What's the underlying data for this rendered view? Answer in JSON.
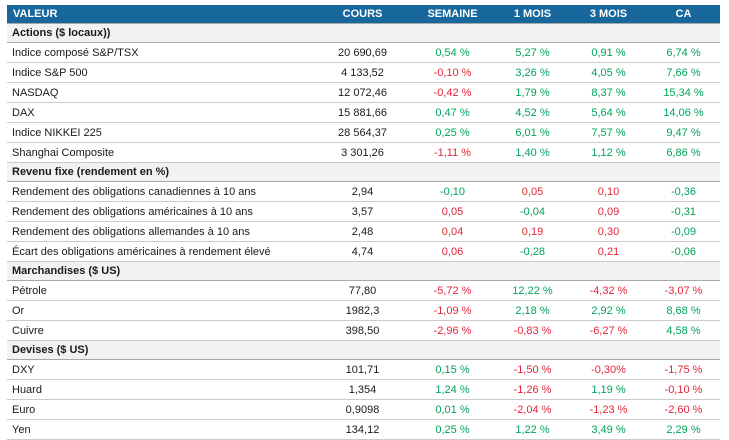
{
  "colors": {
    "header_bg": "#17679D",
    "header_text": "#FFFFFF",
    "positive": "#00A35A",
    "negative": "#E32638",
    "section_bg": "#F2F2F2"
  },
  "chart_data": {
    "type": "table",
    "columns": [
      "VALEUR",
      "COURS",
      "SEMAINE",
      "1 MOIS",
      "3 MOIS",
      "CA"
    ],
    "sections": [
      {
        "title": "Actions ($ locaux))",
        "rows": [
          {
            "label": "Indice composé S&P/TSX",
            "cells": [
              {
                "text": "20 690,69",
                "tone": "plain"
              },
              {
                "text": "0,54 %",
                "tone": "pos"
              },
              {
                "text": "5,27 %",
                "tone": "pos"
              },
              {
                "text": "0,91 %",
                "tone": "pos"
              },
              {
                "text": "6,74 %",
                "tone": "pos"
              }
            ]
          },
          {
            "label": "Indice S&P 500",
            "cells": [
              {
                "text": "4 133,52",
                "tone": "plain"
              },
              {
                "text": "-0,10 %",
                "tone": "neg"
              },
              {
                "text": "3,26 %",
                "tone": "pos"
              },
              {
                "text": "4,05 %",
                "tone": "pos"
              },
              {
                "text": "7,66 %",
                "tone": "pos"
              }
            ]
          },
          {
            "label": "NASDAQ",
            "cells": [
              {
                "text": "12 072,46",
                "tone": "plain"
              },
              {
                "text": "-0,42 %",
                "tone": "neg"
              },
              {
                "text": "1,79 %",
                "tone": "pos"
              },
              {
                "text": "8,37 %",
                "tone": "pos"
              },
              {
                "text": "15,34 %",
                "tone": "pos"
              }
            ]
          },
          {
            "label": "DAX",
            "cells": [
              {
                "text": "15 881,66",
                "tone": "plain"
              },
              {
                "text": "0,47 %",
                "tone": "pos"
              },
              {
                "text": "4,52 %",
                "tone": "pos"
              },
              {
                "text": "5,64 %",
                "tone": "pos"
              },
              {
                "text": "14,06 %",
                "tone": "pos"
              }
            ]
          },
          {
            "label": "Indice NIKKEI 225",
            "cells": [
              {
                "text": "28 564,37",
                "tone": "plain"
              },
              {
                "text": "0,25 %",
                "tone": "pos"
              },
              {
                "text": "6,01 %",
                "tone": "pos"
              },
              {
                "text": "7,57 %",
                "tone": "pos"
              },
              {
                "text": "9,47 %",
                "tone": "pos"
              }
            ]
          },
          {
            "label": "Shanghai Composite",
            "cells": [
              {
                "text": "3 301,26",
                "tone": "plain"
              },
              {
                "text": "-1,11 %",
                "tone": "neg"
              },
              {
                "text": "1,40 %",
                "tone": "pos"
              },
              {
                "text": "1,12 %",
                "tone": "pos"
              },
              {
                "text": "6,86 %",
                "tone": "pos"
              }
            ]
          }
        ]
      },
      {
        "title": "Revenu fixe (rendement en %)",
        "rows": [
          {
            "label": "Rendement des obligations canadiennes à 10 ans",
            "cells": [
              {
                "text": "2,94",
                "tone": "plain"
              },
              {
                "text": "-0,10",
                "tone": "pos"
              },
              {
                "text": "0,05",
                "tone": "neg"
              },
              {
                "text": "0,10",
                "tone": "neg"
              },
              {
                "text": "-0,36",
                "tone": "pos"
              }
            ]
          },
          {
            "label": "Rendement des obligations américaines à 10 ans",
            "cells": [
              {
                "text": "3,57",
                "tone": "plain"
              },
              {
                "text": "0,05",
                "tone": "neg"
              },
              {
                "text": "-0,04",
                "tone": "pos"
              },
              {
                "text": "0,09",
                "tone": "neg"
              },
              {
                "text": "-0,31",
                "tone": "pos"
              }
            ]
          },
          {
            "label": "Rendement des obligations allemandes à 10 ans",
            "cells": [
              {
                "text": "2,48",
                "tone": "plain"
              },
              {
                "text": "0,04",
                "tone": "neg"
              },
              {
                "text": "0,19",
                "tone": "neg"
              },
              {
                "text": "0,30",
                "tone": "neg"
              },
              {
                "text": "-0,09",
                "tone": "pos"
              }
            ]
          },
          {
            "label": "Écart des obligations américaines à rendement élevé",
            "cells": [
              {
                "text": "4,74",
                "tone": "plain"
              },
              {
                "text": "0,06",
                "tone": "neg"
              },
              {
                "text": "-0,28",
                "tone": "pos"
              },
              {
                "text": "0,21",
                "tone": "neg"
              },
              {
                "text": "-0,06",
                "tone": "pos"
              }
            ]
          }
        ]
      },
      {
        "title": "Marchandises ($ US)",
        "rows": [
          {
            "label": "Pétrole",
            "cells": [
              {
                "text": "77,80",
                "tone": "plain"
              },
              {
                "text": "-5,72 %",
                "tone": "neg"
              },
              {
                "text": "12,22 %",
                "tone": "pos"
              },
              {
                "text": "-4,32 %",
                "tone": "neg"
              },
              {
                "text": "-3,07 %",
                "tone": "neg"
              }
            ]
          },
          {
            "label": "Or",
            "cells": [
              {
                "text": "1982,3",
                "tone": "plain"
              },
              {
                "text": "-1,09 %",
                "tone": "neg"
              },
              {
                "text": "2,18 %",
                "tone": "pos"
              },
              {
                "text": "2,92 %",
                "tone": "pos"
              },
              {
                "text": "8,68 %",
                "tone": "pos"
              }
            ]
          },
          {
            "label": "Cuivre",
            "cells": [
              {
                "text": "398,50",
                "tone": "plain"
              },
              {
                "text": "-2,96 %",
                "tone": "neg"
              },
              {
                "text": "-0,83 %",
                "tone": "neg"
              },
              {
                "text": "-6,27 %",
                "tone": "neg"
              },
              {
                "text": "4,58 %",
                "tone": "pos"
              }
            ]
          }
        ]
      },
      {
        "title": "Devises ($ US)",
        "rows": [
          {
            "label": "DXY",
            "cells": [
              {
                "text": "101,71",
                "tone": "plain"
              },
              {
                "text": "0,15 %",
                "tone": "pos"
              },
              {
                "text": "-1,50 %",
                "tone": "neg"
              },
              {
                "text": "-0,30%",
                "tone": "neg"
              },
              {
                "text": "-1,75 %",
                "tone": "neg"
              }
            ]
          },
          {
            "label": "Huard",
            "cells": [
              {
                "text": "1,354",
                "tone": "plain"
              },
              {
                "text": "1,24 %",
                "tone": "pos"
              },
              {
                "text": "-1,26 %",
                "tone": "neg"
              },
              {
                "text": "1,19 %",
                "tone": "pos"
              },
              {
                "text": "-0,10 %",
                "tone": "neg"
              }
            ]
          },
          {
            "label": "Euro",
            "cells": [
              {
                "text": "0,9098",
                "tone": "plain"
              },
              {
                "text": "0,01 %",
                "tone": "pos"
              },
              {
                "text": "-2,04 %",
                "tone": "neg"
              },
              {
                "text": "-1,23 %",
                "tone": "neg"
              },
              {
                "text": "-2,60 %",
                "tone": "neg"
              }
            ]
          },
          {
            "label": "Yen",
            "cells": [
              {
                "text": "134,12",
                "tone": "plain"
              },
              {
                "text": "0,25 %",
                "tone": "pos"
              },
              {
                "text": "1,22 %",
                "tone": "pos"
              },
              {
                "text": "3,49 %",
                "tone": "pos"
              },
              {
                "text": "2,29 %",
                "tone": "pos"
              }
            ]
          }
        ]
      }
    ]
  }
}
